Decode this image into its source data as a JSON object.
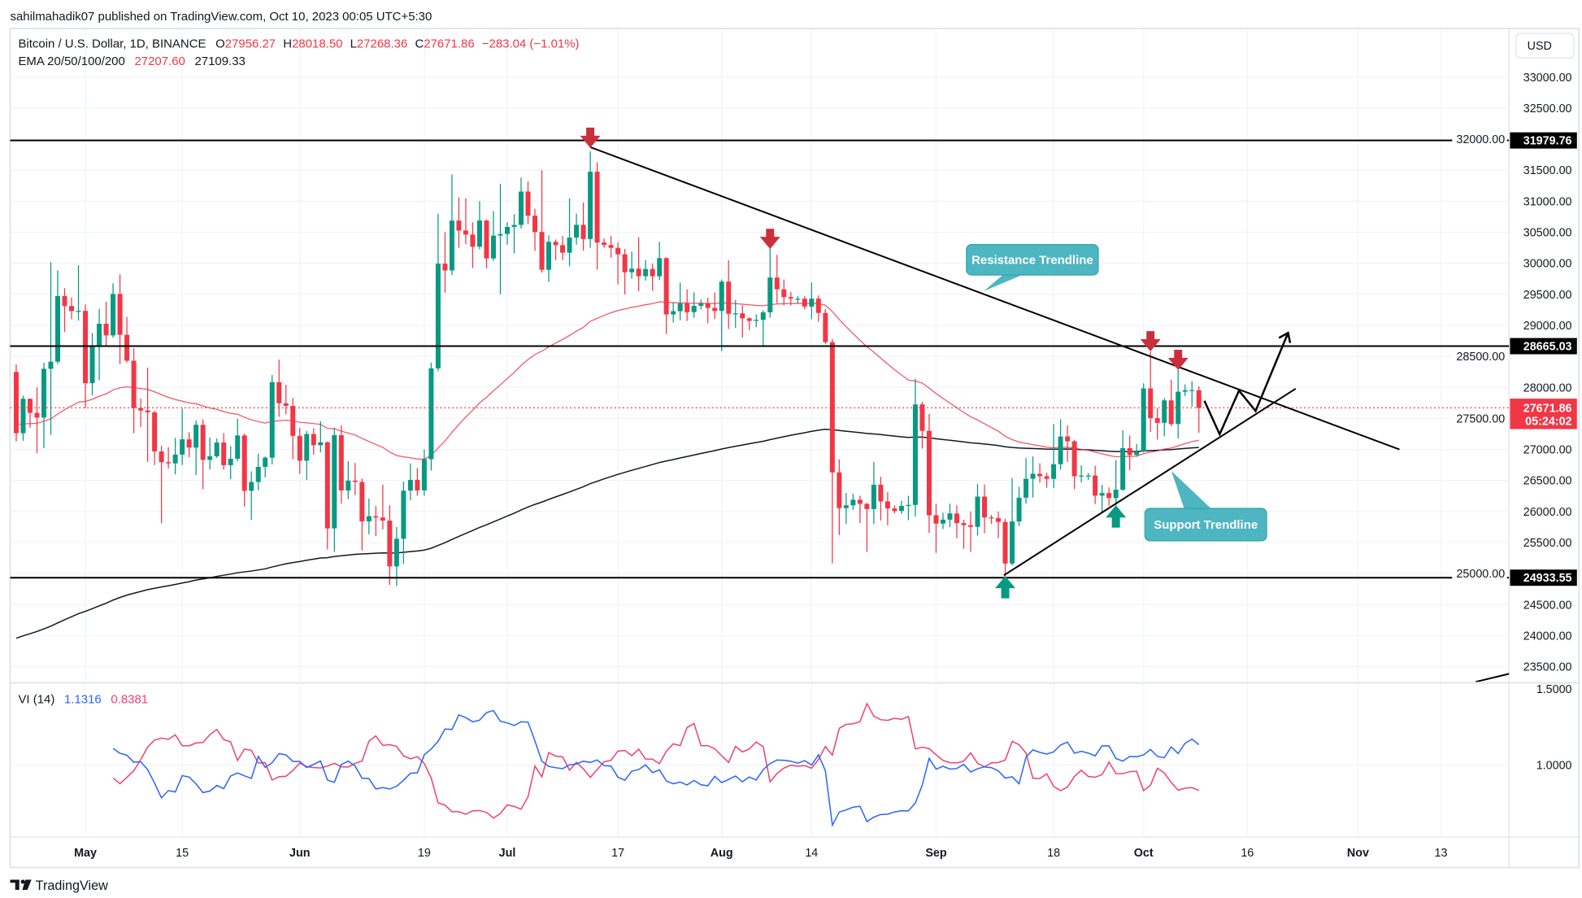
{
  "publish_line": "sahilmahadik07 published on TradingView.com, Oct 10, 2023 00:05 UTC+5:30",
  "legend": {
    "symbol": "Bitcoin / U.S. Dollar, 1D, BINANCE",
    "o_label": "O",
    "o": "27956.27",
    "h_label": "H",
    "h": "28018.50",
    "l_label": "L",
    "l": "27268.36",
    "c_label": "C",
    "c": "27671.86",
    "change": "−283.04 (−1.01%)",
    "ema_label": "EMA 20/50/100/200",
    "ema50": "27207.60",
    "ema200": "27109.33"
  },
  "vi_legend": {
    "label": "VI (14)",
    "plus": "1.1316",
    "minus": "0.8381"
  },
  "currency_button": "USD",
  "price_axis": [
    "33000.00",
    "32500.00",
    "32000.00",
    "31500.00",
    "31000.00",
    "30500.00",
    "30000.00",
    "29500.00",
    "29000.00",
    "28500.00",
    "28000.00",
    "27500.00",
    "27000.00",
    "26500.00",
    "26000.00",
    "25500.00",
    "25000.00",
    "24500.00",
    "24000.00",
    "23500.00"
  ],
  "vi_axis": [
    "1.5000",
    "1.0000"
  ],
  "levels": [
    {
      "price": 31979.76,
      "label": "31979.76"
    },
    {
      "price": 28665.03,
      "label": "28665.03"
    },
    {
      "price": 24933.55,
      "label": "24933.55"
    }
  ],
  "current_price": {
    "price": 27671.86,
    "label": "27671.86",
    "countdown": "05:24:02"
  },
  "annotations": {
    "resistance": "Resistance Trendline",
    "support": "Support Trendline"
  },
  "footer_brand": "TradingView",
  "colors": {
    "up": "#089981",
    "down": "#f23645",
    "ema50": "#f23645",
    "ema200": "#131722",
    "vi_plus": "#2962ff",
    "vi_minus": "#f23f6e",
    "note": "#4db6c0",
    "arrow_down": "#cc2f3c",
    "arrow_up": "#089981"
  },
  "chart_data": {
    "type": "candlestick",
    "title": "Bitcoin / U.S. Dollar, 1D, BINANCE",
    "start_date": "2023-04-21",
    "first_open": 28249,
    "candle_format": [
      "high",
      "low",
      "close"
    ],
    "candles": [
      [
        28371,
        27130,
        27262
      ],
      [
        27867,
        27140,
        27816
      ],
      [
        27820,
        27350,
        27590
      ],
      [
        28000,
        26942,
        27514
      ],
      [
        28399,
        27023,
        28300
      ],
      [
        30019,
        27234,
        28415
      ],
      [
        29887,
        28375,
        29472
      ],
      [
        29599,
        28891,
        29311
      ],
      [
        29450,
        29100,
        29231
      ],
      [
        29969,
        29077,
        29233
      ],
      [
        29337,
        27666,
        28068
      ],
      [
        28877,
        27872,
        28669
      ],
      [
        29266,
        28114,
        29026
      ],
      [
        29379,
        28670,
        28838
      ],
      [
        29677,
        28800,
        29506
      ],
      [
        29820,
        28374,
        28848
      ],
      [
        29138,
        28400,
        28430
      ],
      [
        28631,
        27262,
        27668
      ],
      [
        27820,
        27359,
        27628
      ],
      [
        28320,
        26800,
        27598
      ],
      [
        27624,
        26746,
        26969
      ],
      [
        27060,
        25811,
        26795
      ],
      [
        27036,
        26692,
        26776
      ],
      [
        27187,
        26600,
        26917
      ],
      [
        27660,
        26750,
        27163
      ],
      [
        27277,
        26876,
        27030
      ],
      [
        27467,
        26587,
        27398
      ],
      [
        27485,
        26360,
        26832
      ],
      [
        27193,
        26677,
        26890
      ],
      [
        27176,
        26863,
        27112
      ],
      [
        27264,
        26676,
        26747
      ],
      [
        27055,
        26521,
        26850
      ],
      [
        27495,
        26812,
        27226
      ],
      [
        27253,
        26080,
        26334
      ],
      [
        26647,
        25866,
        26476
      ],
      [
        26934,
        26344,
        26720
      ],
      [
        26887,
        26550,
        26868
      ],
      [
        28200,
        26760,
        28085
      ],
      [
        28447,
        27525,
        27745
      ],
      [
        28044,
        27567,
        27702
      ],
      [
        27830,
        26841,
        27219
      ],
      [
        27350,
        26605,
        26819
      ],
      [
        27300,
        26509,
        27249
      ],
      [
        27342,
        26914,
        27069
      ],
      [
        27455,
        26952,
        27116
      ],
      [
        27129,
        25388,
        25728
      ],
      [
        27350,
        25351,
        27230
      ],
      [
        27391,
        26127,
        26339
      ],
      [
        26810,
        26201,
        26498
      ],
      [
        26783,
        26262,
        26477
      ],
      [
        26533,
        25371,
        25841
      ],
      [
        26209,
        25634,
        25925
      ],
      [
        26087,
        25602,
        25903
      ],
      [
        26433,
        25712,
        25854
      ],
      [
        26100,
        24820,
        25116
      ],
      [
        25750,
        24800,
        25561
      ],
      [
        26480,
        25155,
        26336
      ],
      [
        26775,
        26180,
        26510
      ],
      [
        26700,
        26253,
        26340
      ],
      [
        27000,
        26254,
        26844
      ],
      [
        28400,
        26660,
        28307
      ],
      [
        30800,
        28261,
        29994
      ],
      [
        30500,
        29525,
        29885
      ],
      [
        31431,
        29809,
        30688
      ],
      [
        31060,
        30250,
        30528
      ],
      [
        31046,
        30308,
        30463
      ],
      [
        30662,
        29925,
        30267
      ],
      [
        31000,
        30224,
        30689
      ],
      [
        30705,
        29918,
        30078
      ],
      [
        30839,
        30039,
        30446
      ],
      [
        31282,
        29500,
        30472
      ],
      [
        30662,
        30300,
        30586
      ],
      [
        30790,
        30160,
        30618
      ],
      [
        31380,
        30560,
        31156
      ],
      [
        31322,
        30630,
        30767
      ],
      [
        30880,
        30200,
        30504
      ],
      [
        31500,
        29850,
        29895
      ],
      [
        30448,
        29701,
        30346
      ],
      [
        30384,
        30050,
        30292
      ],
      [
        30440,
        30050,
        30171
      ],
      [
        31045,
        29950,
        30414
      ],
      [
        30800,
        30300,
        30620
      ],
      [
        30980,
        30205,
        30391
      ],
      [
        31804,
        30250,
        31476
      ],
      [
        31630,
        29900,
        30334
      ],
      [
        30400,
        30250,
        30295
      ],
      [
        30440,
        30090,
        30249
      ],
      [
        30336,
        29660,
        30145
      ],
      [
        30233,
        29500,
        29856
      ],
      [
        30188,
        29750,
        29913
      ],
      [
        30417,
        29550,
        29792
      ],
      [
        30050,
        29720,
        29908
      ],
      [
        29997,
        29555,
        29791
      ],
      [
        30346,
        29730,
        30083
      ],
      [
        30098,
        28861,
        29176
      ],
      [
        29375,
        29047,
        29228
      ],
      [
        29690,
        29083,
        29354
      ],
      [
        29580,
        29070,
        29212
      ],
      [
        29530,
        29123,
        29314
      ],
      [
        29415,
        29256,
        29352
      ],
      [
        29449,
        29033,
        29281
      ],
      [
        29530,
        29102,
        29232
      ],
      [
        29739,
        28585,
        29705
      ],
      [
        30047,
        28942,
        29186
      ],
      [
        29409,
        28959,
        29193
      ],
      [
        29327,
        28800,
        29113
      ],
      [
        29130,
        28920,
        29072
      ],
      [
        29175,
        28970,
        29088
      ],
      [
        29244,
        28650,
        29210
      ],
      [
        30244,
        29125,
        29770
      ],
      [
        30136,
        29350,
        29581
      ],
      [
        29738,
        29320,
        29455
      ],
      [
        29540,
        29320,
        29430
      ],
      [
        29474,
        29355,
        29430
      ],
      [
        29473,
        29255,
        29303
      ],
      [
        29690,
        29100,
        29430
      ],
      [
        29480,
        29056,
        29200
      ],
      [
        29262,
        28701,
        28729
      ],
      [
        28780,
        25166,
        26631
      ],
      [
        26839,
        25620,
        26055
      ],
      [
        26299,
        25801,
        26100
      ],
      [
        26287,
        26025,
        26189
      ],
      [
        26255,
        25812,
        26124
      ],
      [
        26138,
        25350,
        26040
      ],
      [
        26800,
        25798,
        26431
      ],
      [
        26560,
        25855,
        26163
      ],
      [
        26311,
        25777,
        26050
      ],
      [
        26099,
        25971,
        26009
      ],
      [
        26174,
        25962,
        26090
      ],
      [
        26253,
        25860,
        26106
      ],
      [
        28142,
        25922,
        27726
      ],
      [
        27766,
        27015,
        27300
      ],
      [
        27575,
        25655,
        25940
      ],
      [
        26125,
        25333,
        25805
      ],
      [
        25980,
        25718,
        25869
      ],
      [
        26127,
        25750,
        25969
      ],
      [
        26100,
        25570,
        25813
      ],
      [
        25868,
        25400,
        25780
      ],
      [
        26000,
        25350,
        25753
      ],
      [
        26444,
        25616,
        26240
      ],
      [
        26435,
        25650,
        25905
      ],
      [
        25945,
        25800,
        25895
      ],
      [
        26000,
        25570,
        25832
      ],
      [
        25880,
        24901,
        25162
      ],
      [
        26539,
        25131,
        25840
      ],
      [
        26400,
        25766,
        26223
      ],
      [
        26860,
        26126,
        26528
      ],
      [
        26888,
        26224,
        26608
      ],
      [
        26777,
        26465,
        26569
      ],
      [
        26626,
        26384,
        26527
      ],
      [
        27409,
        26377,
        26763
      ],
      [
        27488,
        26674,
        27210
      ],
      [
        27387,
        26800,
        27132
      ],
      [
        27155,
        26361,
        26568
      ],
      [
        26743,
        26468,
        26580
      ],
      [
        26620,
        26509,
        26580
      ],
      [
        26738,
        26122,
        26256
      ],
      [
        26430,
        25990,
        26298
      ],
      [
        26389,
        26088,
        26217
      ],
      [
        26830,
        26100,
        26352
      ],
      [
        27310,
        26330,
        27021
      ],
      [
        27225,
        26665,
        26911
      ],
      [
        27090,
        26886,
        26967
      ],
      [
        28065,
        26954,
        27983
      ],
      [
        28580,
        27280,
        27505
      ],
      [
        27665,
        27160,
        27429
      ],
      [
        27830,
        27210,
        27791
      ],
      [
        28123,
        27375,
        27410
      ],
      [
        28285,
        27175,
        27931
      ],
      [
        28050,
        27860,
        27955
      ],
      [
        28100,
        27690,
        27956
      ],
      [
        28018.5,
        27268.36,
        27671.86
      ]
    ],
    "indicators": {
      "ema50": {
        "seed": 27400
      },
      "ema200": {
        "seed": 23925
      },
      "vi_period": 14
    },
    "x_ticks": [
      {
        "label": "May",
        "date": "2023-05-01",
        "bold": true
      },
      {
        "label": "15",
        "date": "2023-05-15",
        "bold": false
      },
      {
        "label": "Jun",
        "date": "2023-06-01",
        "bold": true
      },
      {
        "label": "19",
        "date": "2023-06-19",
        "bold": false
      },
      {
        "label": "Jul",
        "date": "2023-07-01",
        "bold": true
      },
      {
        "label": "17",
        "date": "2023-07-17",
        "bold": false
      },
      {
        "label": "Aug",
        "date": "2023-08-01",
        "bold": true
      },
      {
        "label": "14",
        "date": "2023-08-14",
        "bold": false
      },
      {
        "label": "Sep",
        "date": "2023-09-01",
        "bold": true
      },
      {
        "label": "18",
        "date": "2023-09-18",
        "bold": false
      },
      {
        "label": "Oct",
        "date": "2023-10-01",
        "bold": true
      },
      {
        "label": "16",
        "date": "2023-10-16",
        "bold": false
      },
      {
        "label": "Nov",
        "date": "2023-11-01",
        "bold": true
      },
      {
        "label": "13",
        "date": "2023-11-13",
        "bold": false
      }
    ],
    "ylim": [
      23500,
      33000
    ],
    "vi_ylim": [
      0.5,
      1.55
    ],
    "grid": true
  }
}
